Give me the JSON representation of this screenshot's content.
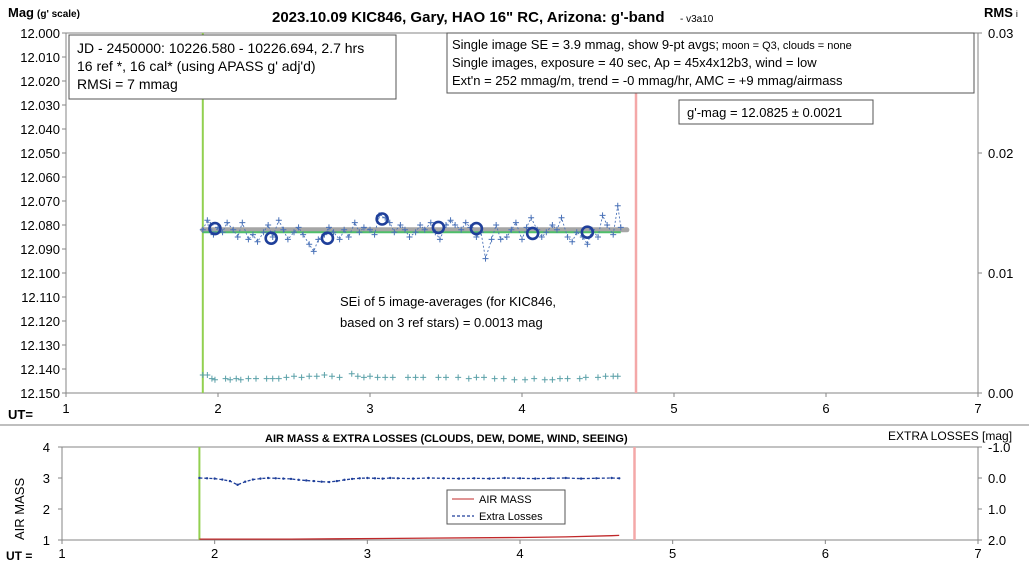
{
  "chart_data": [
    {
      "type": "scatter",
      "title": "2023.10.09 KIC846, Gary, HAO 16\" RC, Arizona: g'-band",
      "version": "- v3a10",
      "ylabel_main": "Mag",
      "ylabel_sub": "(g' scale)",
      "y2label_main": "RMS",
      "y2label_sub": "i",
      "xlabel": "UT=",
      "xlim": [
        1,
        7
      ],
      "ylim": [
        12.0,
        12.15
      ],
      "y2lim": [
        0.0,
        0.03
      ],
      "x_ticks": [
        "1",
        "2",
        "3",
        "4",
        "5",
        "6",
        "7"
      ],
      "y_ticks": [
        "12.000",
        "12.010",
        "12.020",
        "12.030",
        "12.040",
        "12.050",
        "12.060",
        "12.070",
        "12.080",
        "12.090",
        "12.100",
        "12.110",
        "12.120",
        "12.130",
        "12.140",
        "12.150"
      ],
      "y2_ticks": [
        "0.03",
        "0.02",
        "0.01",
        "0.00"
      ],
      "start_line_x": 1.9,
      "end_line_x": 4.75,
      "mean_mag": 12.0825,
      "fit_x_range": [
        1.9,
        4.65
      ],
      "info_box_left": [
        "JD - 2450000: 10226.580 - 10226.694, 2.7 hrs",
        "16 ref *, 16 cal* (using APASS g' adj'd)",
        "RMSi = 7 mmag"
      ],
      "info_box_right": {
        "line1_main": "Single image SE = 3.9 mmag, show  9-pt avgs;",
        "line1_small": " moon = Q3, clouds = none",
        "line2": "Single images, exposure = 40 sec, Ap = 45x4x12b3, wind = low",
        "line3": "Ext'n = 252 mmag/m, trend = -0 mmag/hr, AMC = +9 mmag/airmass"
      },
      "gmag_box": "g'-mag = 12.0825 ± 0.0021",
      "sei_box": [
        "SEi of 5 image-averages (for KIC846,",
        "based on 3 ref stars) = 0.0013 mag"
      ],
      "series": [
        {
          "role": "single images",
          "color": "#4a72b8",
          "x": [
            1.9,
            1.93,
            1.95,
            1.97,
            2.0,
            2.03,
            2.06,
            2.1,
            2.13,
            2.16,
            2.2,
            2.23,
            2.26,
            2.3,
            2.33,
            2.36,
            2.4,
            2.43,
            2.46,
            2.5,
            2.53,
            2.56,
            2.6,
            2.63,
            2.66,
            2.7,
            2.73,
            2.76,
            2.8,
            2.83,
            2.86,
            2.9,
            2.93,
            2.96,
            3.0,
            3.03,
            3.06,
            3.1,
            3.13,
            3.16,
            3.2,
            3.23,
            3.26,
            3.3,
            3.33,
            3.36,
            3.4,
            3.43,
            3.46,
            3.5,
            3.53,
            3.56,
            3.6,
            3.63,
            3.66,
            3.7,
            3.73,
            3.76,
            3.8,
            3.83,
            3.86,
            3.9,
            3.93,
            3.96,
            4.0,
            4.03,
            4.06,
            4.1,
            4.13,
            4.16,
            4.2,
            4.23,
            4.26,
            4.3,
            4.33,
            4.36,
            4.4,
            4.43,
            4.46,
            4.5,
            4.53,
            4.56,
            4.6,
            4.63,
            4.65
          ],
          "y": [
            12.082,
            12.078,
            12.08,
            12.084,
            12.081,
            12.083,
            12.079,
            12.082,
            12.085,
            12.079,
            12.086,
            12.084,
            12.087,
            12.083,
            12.08,
            12.085,
            12.078,
            12.082,
            12.086,
            12.083,
            12.081,
            12.084,
            12.088,
            12.091,
            12.086,
            12.084,
            12.081,
            12.083,
            12.086,
            12.082,
            12.085,
            12.079,
            12.083,
            12.081,
            12.082,
            12.084,
            12.076,
            12.077,
            12.079,
            12.083,
            12.08,
            12.082,
            12.085,
            12.083,
            12.08,
            12.082,
            12.079,
            12.083,
            12.086,
            12.08,
            12.078,
            12.08,
            12.082,
            12.079,
            12.081,
            12.085,
            12.083,
            12.094,
            12.086,
            12.08,
            12.086,
            12.085,
            12.082,
            12.079,
            12.086,
            12.081,
            12.077,
            12.082,
            12.085,
            12.083,
            12.08,
            12.082,
            12.077,
            12.085,
            12.087,
            12.083,
            12.085,
            12.088,
            12.082,
            12.085,
            12.076,
            12.08,
            12.084,
            12.072,
            12.081
          ]
        },
        {
          "role": "9-pt averages",
          "color": "#1f3f9a",
          "x": [
            1.98,
            2.35,
            2.72,
            3.08,
            3.45,
            3.7,
            4.07,
            4.43
          ],
          "y": [
            12.0815,
            12.0855,
            12.0855,
            12.0775,
            12.081,
            12.0815,
            12.0835,
            12.083
          ]
        },
        {
          "role": "RMSi",
          "color": "#5aa0a8",
          "axis": "y2",
          "x": [
            1.9,
            1.93,
            1.96,
            1.98,
            2.05,
            2.08,
            2.12,
            2.15,
            2.2,
            2.25,
            2.32,
            2.36,
            2.4,
            2.45,
            2.5,
            2.55,
            2.6,
            2.65,
            2.7,
            2.75,
            2.8,
            2.88,
            2.92,
            2.96,
            3.0,
            3.05,
            3.1,
            3.15,
            3.25,
            3.3,
            3.35,
            3.45,
            3.5,
            3.58,
            3.65,
            3.7,
            3.75,
            3.82,
            3.88,
            3.95,
            4.02,
            4.08,
            4.15,
            4.2,
            4.25,
            4.3,
            4.38,
            4.42,
            4.5,
            4.55,
            4.6,
            4.63
          ],
          "y": [
            0.0015,
            0.0015,
            0.0012,
            0.0011,
            0.0012,
            0.0011,
            0.0012,
            0.0011,
            0.0012,
            0.0012,
            0.0012,
            0.0012,
            0.0012,
            0.0013,
            0.0014,
            0.0013,
            0.0014,
            0.0014,
            0.0015,
            0.0014,
            0.0013,
            0.0016,
            0.0014,
            0.0013,
            0.0014,
            0.0013,
            0.0013,
            0.0013,
            0.0013,
            0.0013,
            0.0013,
            0.0013,
            0.0013,
            0.0013,
            0.0012,
            0.0013,
            0.0013,
            0.0012,
            0.0012,
            0.0011,
            0.0011,
            0.0012,
            0.0011,
            0.0011,
            0.0012,
            0.0012,
            0.0012,
            0.0013,
            0.0013,
            0.0014,
            0.0014,
            0.0014
          ]
        }
      ]
    },
    {
      "type": "line",
      "title": "AIR MASS & EXTRA LOSSES (CLOUDS, DEW, DOME, WIND, SEEING)",
      "ylabel": "AIR MASS",
      "y2label": "EXTRA LOSSES [mag]",
      "xlabel": "UT =",
      "xlim": [
        1,
        7
      ],
      "ylim": [
        1,
        4
      ],
      "y2lim": [
        -1.0,
        2.0
      ],
      "x_ticks": [
        "1",
        "2",
        "3",
        "4",
        "5",
        "6",
        "7"
      ],
      "y_ticks": [
        "4",
        "3",
        "2",
        "1"
      ],
      "y2_ticks": [
        "-1.0",
        "0.0",
        "1.0",
        "2.0"
      ],
      "start_line_x": 1.9,
      "end_line_x": 4.75,
      "legend": {
        "position": "center",
        "entries": [
          "AIR MASS",
          "Extra Losses"
        ]
      },
      "series": [
        {
          "name": "AIR MASS",
          "color": "#c0282a",
          "x": [
            1.9,
            2.2,
            2.5,
            2.8,
            3.1,
            3.4,
            3.7,
            4.0,
            4.3,
            4.6,
            4.65
          ],
          "y": [
            1.03,
            1.03,
            1.03,
            1.04,
            1.05,
            1.06,
            1.07,
            1.08,
            1.1,
            1.14,
            1.15
          ]
        },
        {
          "name": "Extra Losses",
          "color": "#1f3f9a",
          "axis": "y2",
          "x": [
            1.9,
            1.95,
            2.0,
            2.05,
            2.1,
            2.15,
            2.2,
            2.25,
            2.3,
            2.35,
            2.4,
            2.45,
            2.5,
            2.55,
            2.6,
            2.65,
            2.7,
            2.75,
            2.8,
            2.85,
            2.9,
            2.95,
            3.0,
            3.05,
            3.1,
            3.15,
            3.2,
            3.3,
            3.4,
            3.5,
            3.6,
            3.7,
            3.8,
            3.9,
            4.0,
            4.1,
            4.2,
            4.3,
            4.4,
            4.5,
            4.6,
            4.65
          ],
          "y": [
            0.0,
            0.01,
            0.02,
            0.05,
            0.1,
            0.22,
            0.12,
            0.05,
            0.02,
            0.0,
            0.01,
            0.02,
            0.03,
            0.06,
            0.08,
            0.1,
            0.12,
            0.13,
            0.1,
            0.06,
            0.03,
            0.01,
            0.0,
            0.01,
            0.02,
            0.0,
            0.01,
            0.02,
            0.0,
            0.01,
            0.02,
            0.01,
            0.02,
            0.0,
            0.01,
            0.02,
            0.01,
            0.0,
            0.02,
            0.01,
            0.0,
            0.01
          ]
        }
      ]
    }
  ]
}
